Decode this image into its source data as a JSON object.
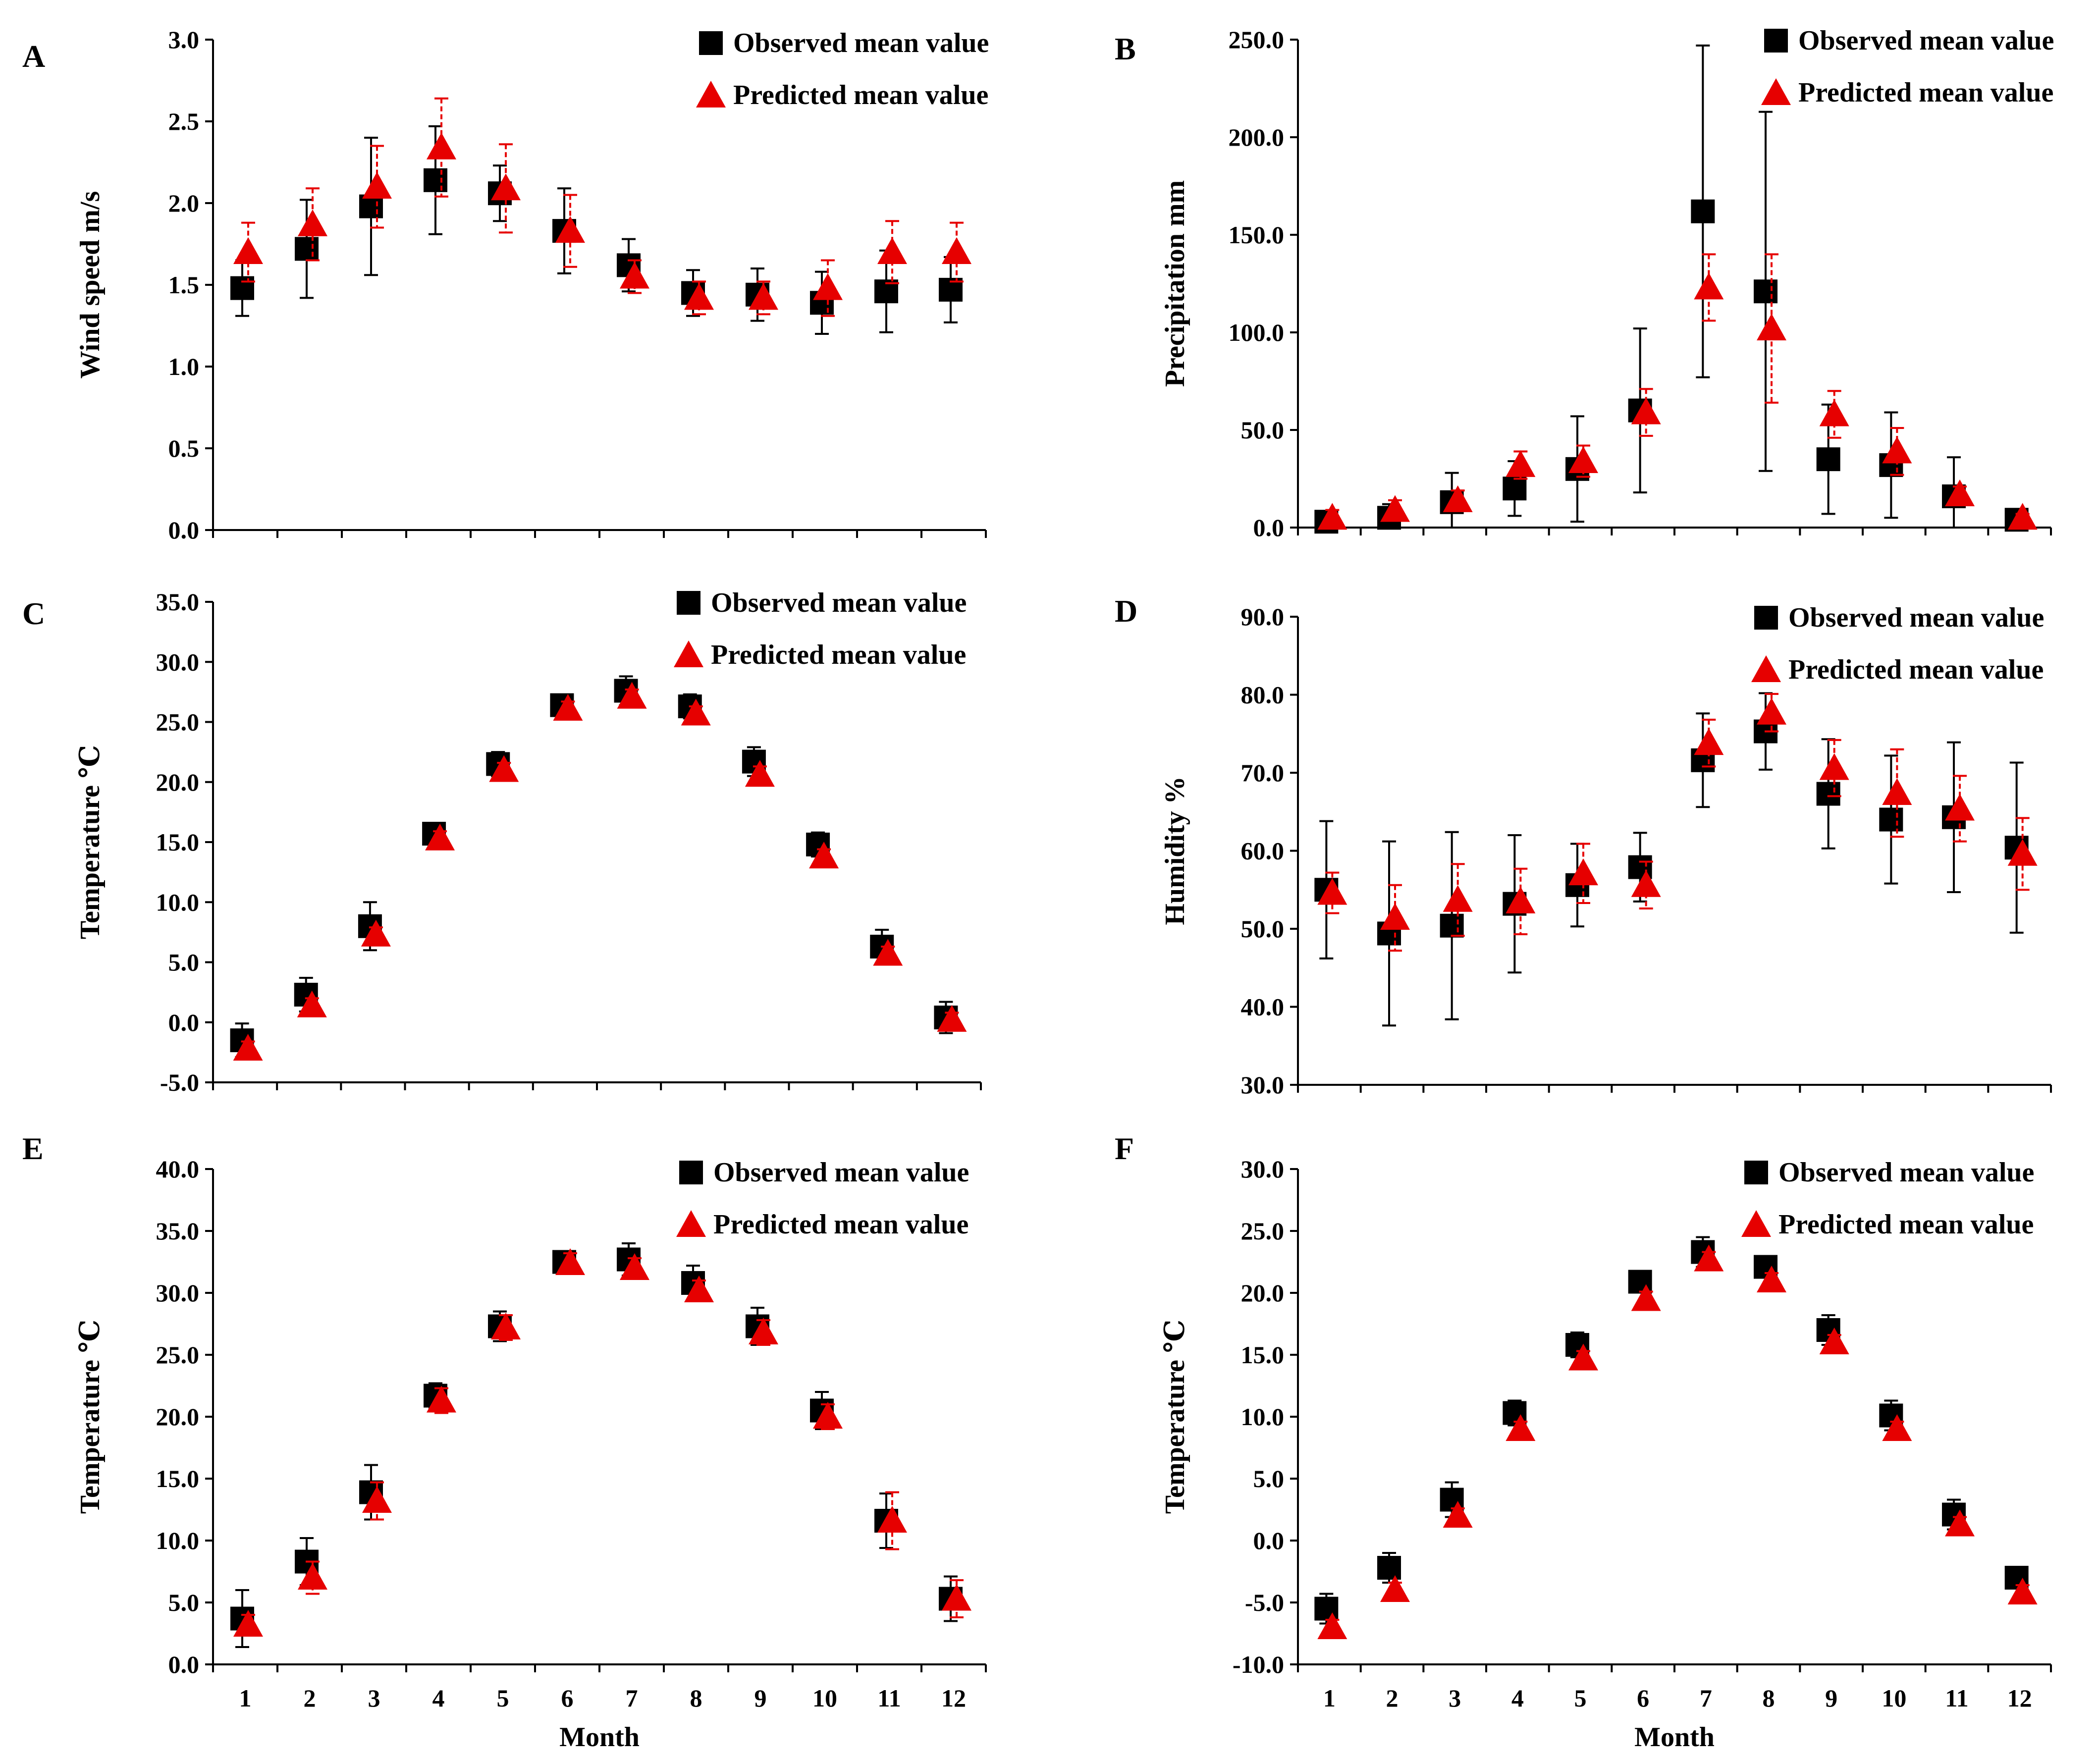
{
  "colors": {
    "observed": "#000000",
    "predicted": "#e60000",
    "axis": "#000000"
  },
  "months": [
    "1",
    "2",
    "3",
    "4",
    "5",
    "6",
    "7",
    "8",
    "9",
    "10",
    "11",
    "12"
  ],
  "legend": {
    "observed": "Observed mean value",
    "predicted": "Predicted mean value"
  },
  "x_title": "Month",
  "chart_data": [
    {
      "panel": "A",
      "type": "scatter",
      "title": "",
      "xlabel": "",
      "ylabel": "Wind speed m/s",
      "ylim": [
        0,
        3.0
      ],
      "yticks": [
        "0.0",
        "0.5",
        "1.0",
        "1.5",
        "2.0",
        "2.5",
        "3.0"
      ],
      "series": [
        {
          "name": "Observed mean value",
          "values": [
            1.48,
            1.72,
            1.98,
            2.14,
            2.06,
            1.83,
            1.62,
            1.45,
            1.44,
            1.39,
            1.46,
            1.47
          ],
          "errors": [
            0.17,
            0.3,
            0.42,
            0.33,
            0.17,
            0.26,
            0.16,
            0.14,
            0.16,
            0.19,
            0.25,
            0.2
          ]
        },
        {
          "name": "Predicted mean value",
          "values": [
            1.7,
            1.87,
            2.1,
            2.34,
            2.09,
            1.83,
            1.55,
            1.42,
            1.42,
            1.48,
            1.7,
            1.7
          ],
          "errors": [
            0.18,
            0.22,
            0.25,
            0.3,
            0.27,
            0.22,
            0.1,
            0.1,
            0.1,
            0.17,
            0.19,
            0.18
          ]
        }
      ]
    },
    {
      "panel": "B",
      "type": "scatter",
      "title": "",
      "xlabel": "",
      "ylabel": "Precipitation mm",
      "ylim": [
        0,
        250
      ],
      "yticks": [
        "0.0",
        "50.0",
        "100.0",
        "150.0",
        "200.0",
        "250.0"
      ],
      "series": [
        {
          "name": "Observed mean value",
          "values": [
            3,
            5,
            13,
            20,
            30,
            60,
            162,
            121,
            35,
            32,
            16,
            4
          ],
          "errors": [
            5,
            7,
            15,
            14,
            27,
            42,
            85,
            92,
            28,
            27,
            20,
            3
          ]
        },
        {
          "name": "Predicted mean value",
          "values": [
            5,
            9,
            14,
            32,
            34,
            59,
            123,
            102,
            58,
            39,
            17,
            5
          ],
          "errors": [
            4,
            5,
            5,
            7,
            8,
            12,
            17,
            38,
            12,
            12,
            4,
            2
          ]
        }
      ]
    },
    {
      "panel": "C",
      "type": "scatter",
      "title": "",
      "xlabel": "",
      "ylabel": "Temperature ℃",
      "ylim": [
        -5,
        35
      ],
      "yticks": [
        "-5.0",
        "0.0",
        "5.0",
        "10.0",
        "15.0",
        "20.0",
        "25.0",
        "30.0",
        "35.0"
      ],
      "series": [
        {
          "name": "Observed mean value",
          "values": [
            -1.5,
            2.3,
            8.0,
            15.7,
            21.5,
            26.4,
            27.6,
            26.3,
            21.7,
            14.8,
            6.3,
            0.4
          ],
          "errors": [
            1.4,
            1.4,
            2.0,
            0.8,
            1.0,
            0.5,
            1.2,
            1.0,
            1.2,
            1.0,
            1.4,
            1.3
          ]
        },
        {
          "name": "Predicted mean value",
          "values": [
            -2.2,
            1.4,
            7.3,
            15.3,
            21.0,
            26.1,
            27.1,
            25.7,
            20.6,
            13.8,
            5.7,
            0.2
          ],
          "errors": [
            0.6,
            0.6,
            0.6,
            0.6,
            0.6,
            0.6,
            0.6,
            0.6,
            0.7,
            0.6,
            0.6,
            0.6
          ]
        }
      ]
    },
    {
      "panel": "D",
      "type": "scatter",
      "title": "",
      "xlabel": "",
      "ylabel": "Humidity %",
      "ylim": [
        30,
        90
      ],
      "yticks": [
        "30.0",
        "40.0",
        "50.0",
        "60.0",
        "70.0",
        "80.0",
        "90.0"
      ],
      "series": [
        {
          "name": "Observed mean value",
          "values": [
            55.0,
            49.4,
            50.4,
            53.2,
            55.6,
            57.9,
            71.6,
            75.3,
            67.3,
            64.0,
            64.3,
            60.4
          ],
          "errors": [
            8.8,
            11.8,
            12.0,
            8.8,
            5.3,
            4.4,
            6.0,
            4.9,
            7.0,
            8.2,
            9.6,
            10.9
          ]
        },
        {
          "name": "Predicted mean value",
          "values": [
            54.6,
            51.4,
            53.7,
            53.5,
            57.1,
            55.6,
            73.8,
            77.7,
            70.6,
            67.4,
            65.4,
            59.6
          ],
          "errors": [
            2.6,
            4.2,
            4.6,
            4.2,
            3.8,
            3.0,
            3.0,
            2.4,
            3.6,
            5.6,
            4.2,
            4.6
          ]
        }
      ]
    },
    {
      "panel": "E",
      "type": "scatter",
      "title": "",
      "xlabel": "Month",
      "ylabel": "Temperature ℃",
      "ylim": [
        0,
        40
      ],
      "yticks": [
        "0.0",
        "5.0",
        "10.0",
        "15.0",
        "20.0",
        "25.0",
        "30.0",
        "35.0",
        "40.0"
      ],
      "series": [
        {
          "name": "Observed mean value",
          "values": [
            3.7,
            8.3,
            13.9,
            21.7,
            27.3,
            32.5,
            32.7,
            30.8,
            27.3,
            20.5,
            11.6,
            5.3
          ],
          "errors": [
            2.3,
            1.9,
            2.2,
            1.0,
            1.2,
            0.8,
            1.3,
            1.4,
            1.5,
            1.5,
            2.2,
            1.8
          ]
        },
        {
          "name": "Predicted mean value",
          "values": [
            3.2,
            7.0,
            13.2,
            21.3,
            27.2,
            32.4,
            32.0,
            30.2,
            26.8,
            20.0,
            11.6,
            5.3
          ],
          "errors": [
            0.8,
            1.3,
            1.5,
            1.0,
            1.0,
            0.8,
            0.8,
            0.8,
            1.0,
            1.0,
            2.3,
            1.5
          ]
        }
      ]
    },
    {
      "panel": "F",
      "type": "scatter",
      "title": "",
      "xlabel": "Month",
      "ylabel": "Temperature ℃",
      "ylim": [
        -10,
        30
      ],
      "yticks": [
        "-10.0",
        "-5.0",
        "0.0",
        "5.0",
        "10.0",
        "15.0",
        "20.0",
        "25.0",
        "30.0"
      ],
      "series": [
        {
          "name": "Observed mean value",
          "values": [
            -5.5,
            -2.2,
            3.3,
            10.3,
            15.8,
            20.9,
            23.3,
            22.1,
            17.0,
            10.1,
            2.1,
            -3.0
          ],
          "errors": [
            1.2,
            1.2,
            1.4,
            1.0,
            1.0,
            0.6,
            1.2,
            0.8,
            1.2,
            1.2,
            1.2,
            0.6
          ]
        },
        {
          "name": "Predicted mean value",
          "values": [
            -7.0,
            -4.0,
            2.0,
            9.0,
            14.7,
            19.5,
            22.7,
            21.0,
            16.0,
            9.0,
            1.3,
            -4.2
          ],
          "errors": [
            0.6,
            0.6,
            0.6,
            0.6,
            0.6,
            0.6,
            0.6,
            0.6,
            0.6,
            0.6,
            0.6,
            0.6
          ]
        }
      ]
    }
  ]
}
